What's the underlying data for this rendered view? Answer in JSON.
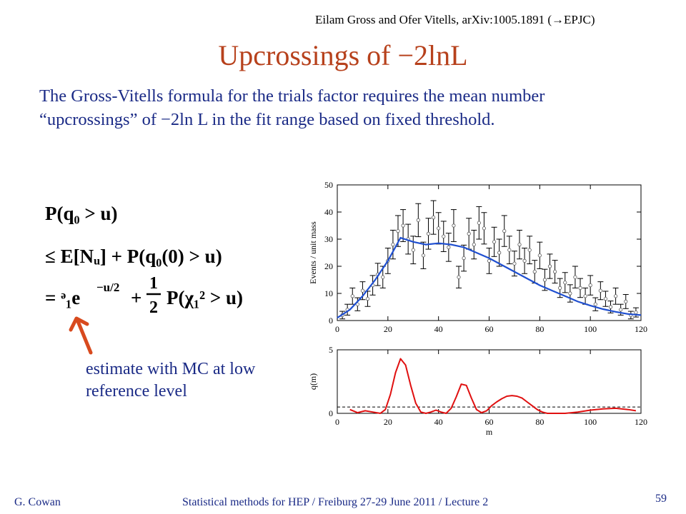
{
  "slide": {
    "citation": "Eilam Gross and Ofer Vitells, arXiv:1005.1891 (→EPJC)",
    "title": "Upcrossings of −2lnL",
    "intro": "The Gross-Vitells formula for the trials factor requires the mean number “upcrossings” of −2ln L in the fit range based on fixed threshold.",
    "formula": {
      "line1": "P(q₀ > u)",
      "line2": "≤ E[Nᵤ] + P(q₀(0) > u)",
      "line3_lhs": "= ᵊ₁e",
      "line3_exp": "−u/2",
      "line3_plus": "+",
      "frac_num": "1",
      "frac_den": "2",
      "line3_rhs": "P(χ₁² > u)"
    },
    "note": "estimate with MC at low reference level",
    "footer_author": "G. Cowan",
    "footer_course": "Statistical methods for HEP / Freiburg 27-29 June 2011 / Lecture 2",
    "page_number": "59",
    "colors": {
      "title": "#b7411c",
      "text": "#1a2a86",
      "fit": "#1f4fd0",
      "q": "#e01010",
      "arrow": "#d84a1e"
    }
  },
  "chart_data": [
    {
      "type": "scatter",
      "ylabel": "Events / unit mass",
      "xlabel": "",
      "xlim": [
        0,
        120
      ],
      "ylim": [
        0,
        50
      ],
      "x_ticks": [
        "0",
        "20",
        "40",
        "60",
        "80",
        "100",
        "120"
      ],
      "y_ticks": [
        "0",
        "10",
        "20",
        "30",
        "40",
        "50"
      ],
      "series": [
        {
          "x": [
            2,
            4,
            6,
            8,
            10,
            12,
            14,
            16,
            18,
            20,
            22,
            24,
            26,
            28,
            30,
            32,
            34,
            36,
            38,
            40,
            42,
            44,
            46,
            48,
            50,
            52,
            54,
            56,
            58,
            60,
            62,
            64,
            66,
            68,
            70,
            72,
            74,
            76,
            78,
            80,
            82,
            84,
            86,
            88,
            90,
            92,
            94,
            96,
            98,
            100,
            102,
            104,
            106,
            108,
            110,
            112,
            114,
            116,
            118
          ],
          "y": [
            2,
            4,
            9,
            6,
            11,
            8,
            13,
            17,
            16,
            22,
            28,
            33,
            35,
            30,
            26,
            37,
            24,
            32,
            38,
            34,
            31,
            27,
            35,
            16,
            23,
            32,
            28,
            36,
            34,
            22,
            29,
            25,
            33,
            26,
            21,
            28,
            22,
            26,
            18,
            24,
            15,
            20,
            18,
            12,
            14,
            10,
            16,
            12,
            9,
            13,
            6,
            11,
            8,
            5,
            9,
            4,
            7,
            2,
            3
          ],
          "yerr": [
            1.4,
            2,
            3,
            2.4,
            3.3,
            2.8,
            3.6,
            4.1,
            4,
            4.7,
            5.3,
            5.7,
            5.9,
            5.5,
            5.1,
            6.1,
            4.9,
            5.7,
            6.2,
            5.8,
            5.6,
            5.2,
            5.9,
            4,
            4.8,
            5.7,
            5.3,
            6,
            5.8,
            4.7,
            5.4,
            5,
            5.7,
            5.1,
            4.6,
            5.3,
            4.7,
            5.1,
            4.2,
            4.9,
            3.9,
            4.5,
            4.2,
            3.5,
            3.7,
            3.2,
            4,
            3.5,
            3,
            3.6,
            2.4,
            3.3,
            2.8,
            2.2,
            3,
            2,
            2.6,
            1.4,
            1.7
          ]
        },
        {
          "name": "fit",
          "x": [
            0,
            5,
            10,
            15,
            20,
            25,
            30,
            35,
            40,
            45,
            50,
            55,
            60,
            65,
            70,
            75,
            80,
            85,
            90,
            95,
            100,
            105,
            110,
            115,
            120
          ],
          "y": [
            1,
            4,
            9,
            15,
            22,
            30.5,
            29,
            28,
            28.5,
            28,
            27,
            25,
            23,
            20.5,
            18,
            15.5,
            13,
            11,
            9,
            7,
            5.5,
            4.2,
            3.2,
            2.4,
            2
          ]
        }
      ]
    },
    {
      "type": "line",
      "ylabel": "q(m)",
      "xlabel": "m",
      "xlim": [
        0,
        120
      ],
      "ylim": [
        0,
        5
      ],
      "x_ticks": [
        "0",
        "20",
        "40",
        "60",
        "80",
        "100",
        "120"
      ],
      "y_ticks": [
        "0",
        "5"
      ],
      "threshold": 0.5,
      "series": [
        {
          "name": "q",
          "x": [
            5,
            8,
            11,
            14,
            17,
            19,
            21,
            23,
            25,
            27,
            29,
            31,
            33,
            35,
            37,
            39,
            41,
            43,
            45,
            47,
            49,
            51,
            53,
            55,
            57,
            59,
            61,
            63,
            65,
            67,
            69,
            71,
            73,
            75,
            77,
            79,
            81,
            83,
            85,
            90,
            95,
            100,
            105,
            110,
            115,
            118
          ],
          "y": [
            0.3,
            0.05,
            0.2,
            0.1,
            0.0,
            0.3,
            1.5,
            3.2,
            4.3,
            3.8,
            2.2,
            0.8,
            0.1,
            0.0,
            0.1,
            0.25,
            0.1,
            0.0,
            0.4,
            1.3,
            2.3,
            2.2,
            1.2,
            0.3,
            0.05,
            0.2,
            0.6,
            0.9,
            1.15,
            1.35,
            1.4,
            1.35,
            1.2,
            0.9,
            0.6,
            0.3,
            0.1,
            0.0,
            0.0,
            0.0,
            0.1,
            0.25,
            0.35,
            0.4,
            0.3,
            0.2
          ]
        }
      ]
    }
  ]
}
